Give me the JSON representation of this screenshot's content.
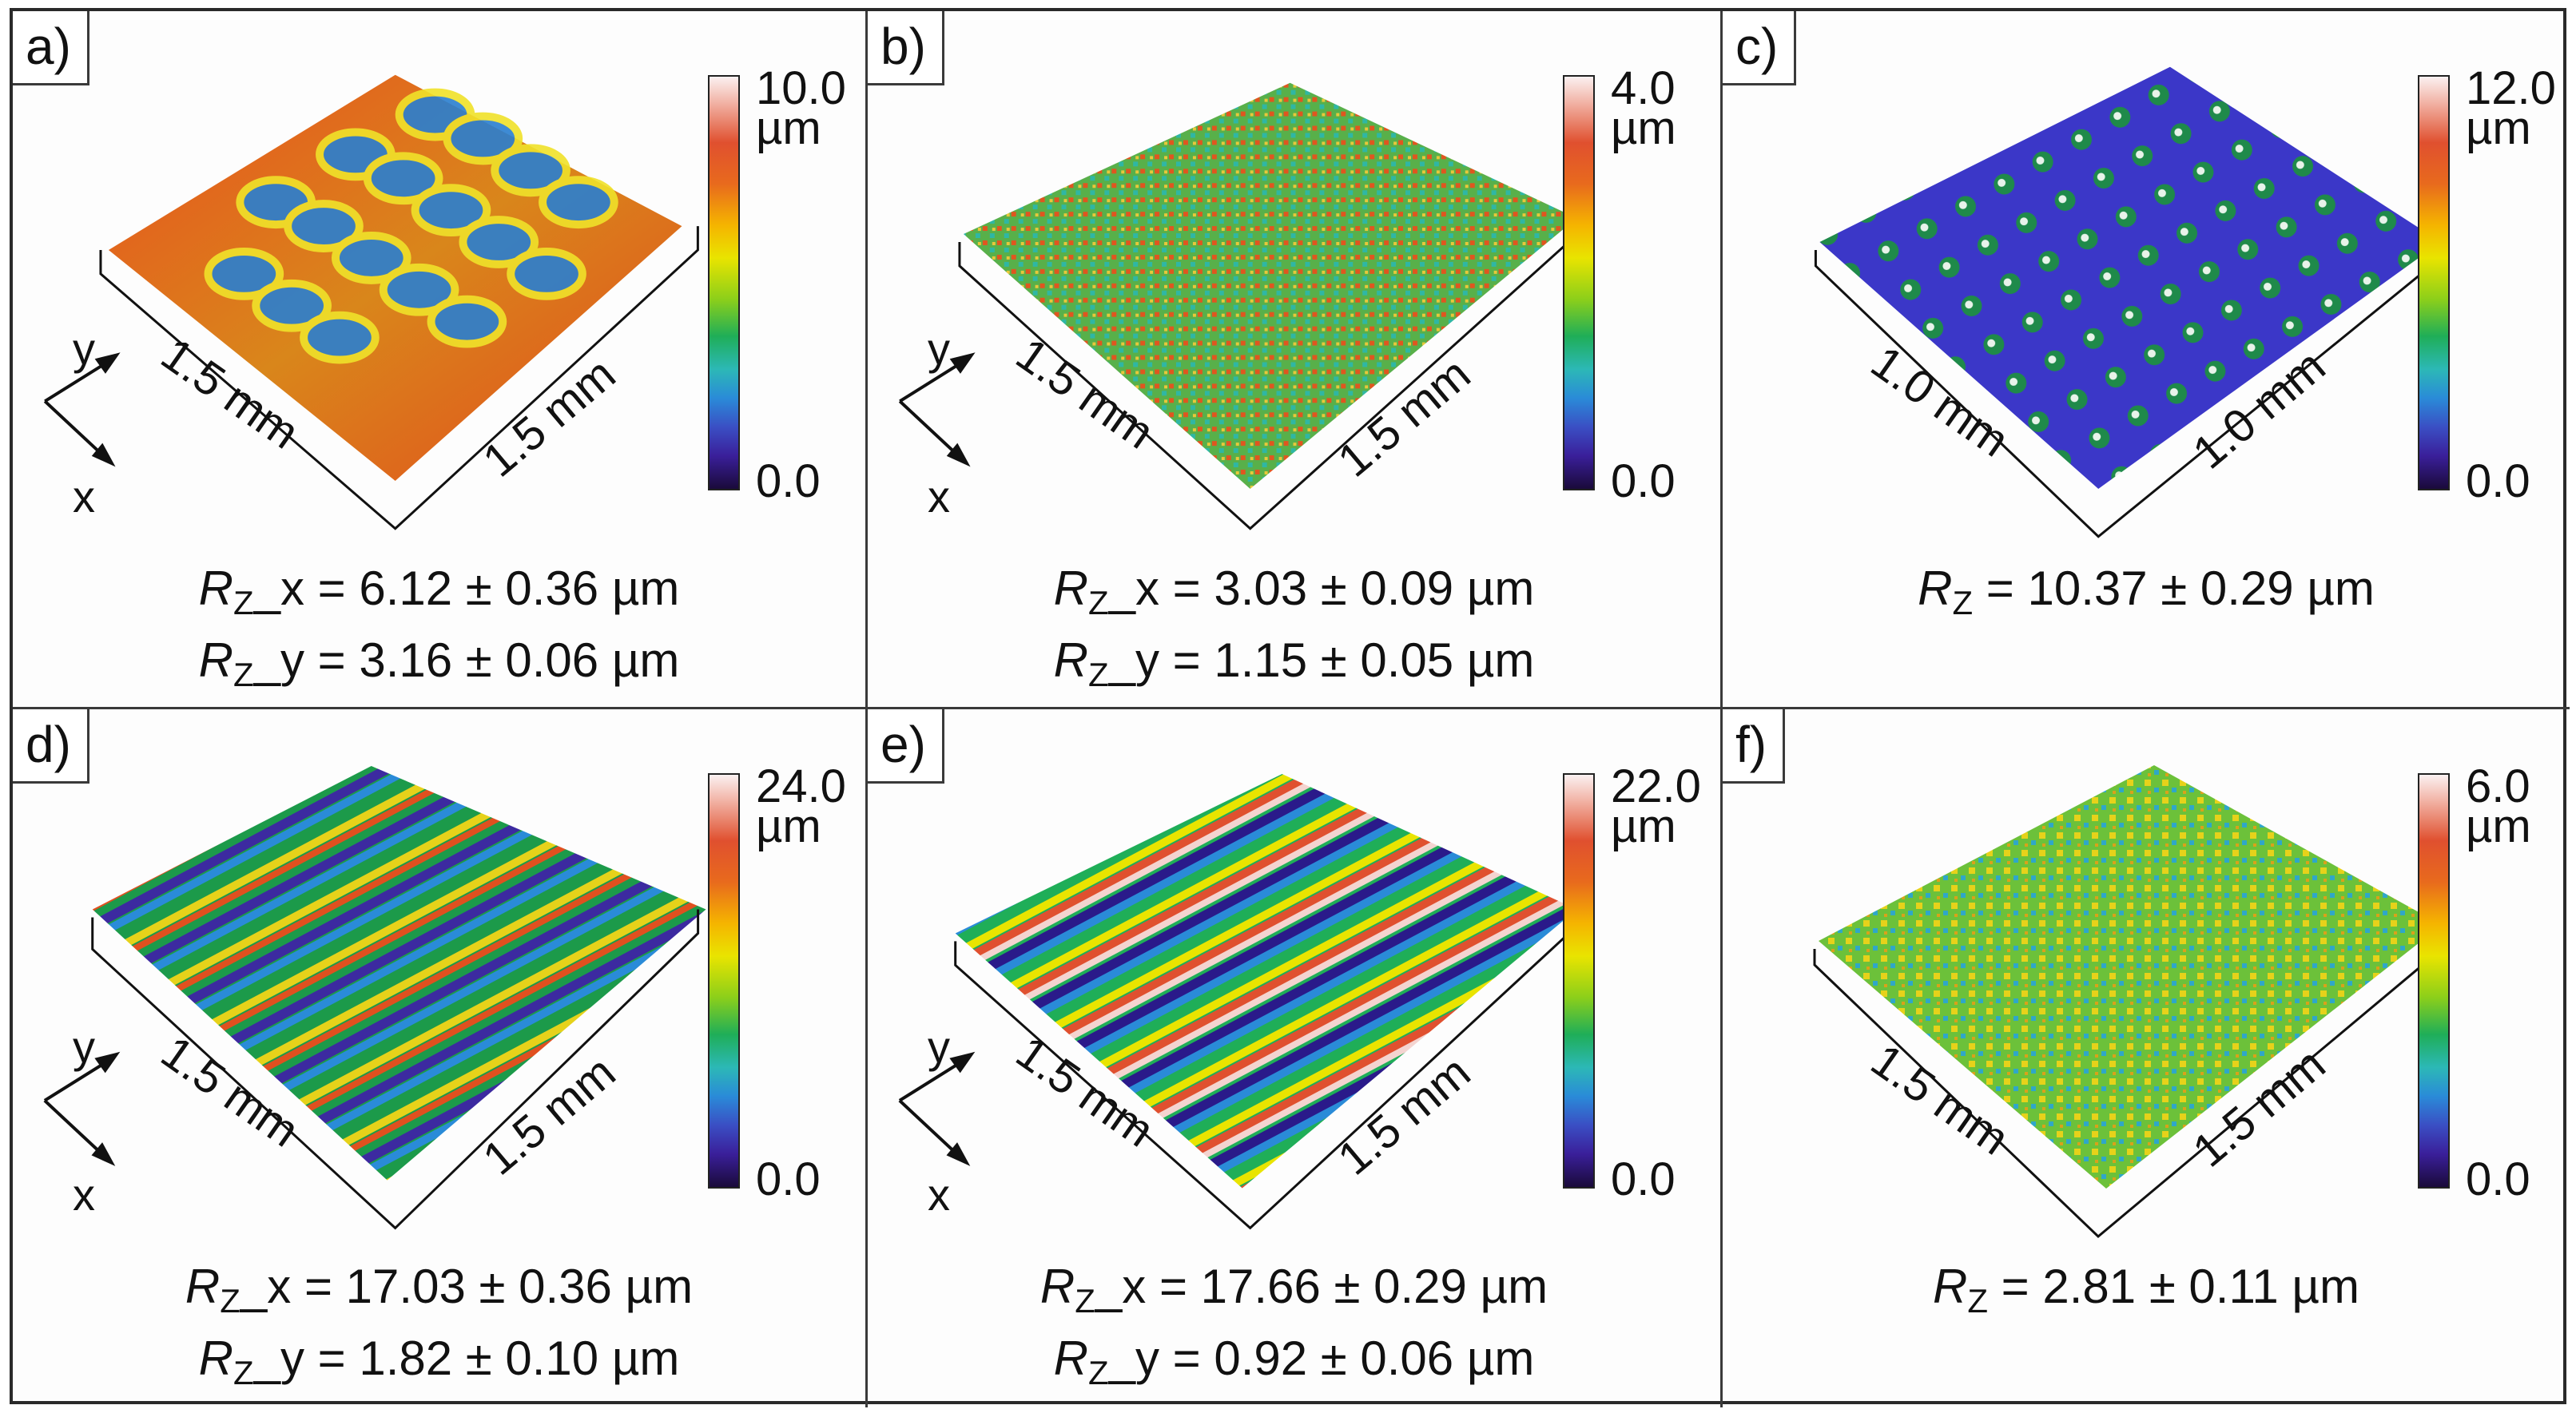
{
  "panels": [
    {
      "label": "a)",
      "colorbar": {
        "max": "10.0",
        "unit": "µm",
        "min": "0.0"
      },
      "dims": {
        "left": "1.5 mm",
        "right": "1.5 mm"
      },
      "axes": {
        "y": "y",
        "x": "x"
      },
      "measurements": [
        {
          "sym": "R",
          "sub": "Z",
          "suffix": "_x",
          "value": " = 6.12 ± 0.36 µm"
        },
        {
          "sym": "R",
          "sub": "Z",
          "suffix": "_y",
          "value": " = 3.16 ± 0.06 µm"
        }
      ]
    },
    {
      "label": "b)",
      "colorbar": {
        "max": "4.0",
        "unit": "µm",
        "min": "0.0"
      },
      "dims": {
        "left": "1.5 mm",
        "right": "1.5 mm"
      },
      "axes": {
        "y": "y",
        "x": "x"
      },
      "measurements": [
        {
          "sym": "R",
          "sub": "Z",
          "suffix": "_x",
          "value": " = 3.03 ± 0.09 µm"
        },
        {
          "sym": "R",
          "sub": "Z",
          "suffix": "_y",
          "value": " = 1.15 ± 0.05 µm"
        }
      ]
    },
    {
      "label": "c)",
      "colorbar": {
        "max": "12.0",
        "unit": "µm",
        "min": "0.0"
      },
      "dims": {
        "left": "1.0 mm",
        "right": "1.0 mm"
      },
      "measurements": [
        {
          "sym": "R",
          "sub": "Z",
          "suffix": "",
          "value": " = 10.37 ± 0.29 µm"
        }
      ]
    },
    {
      "label": "d)",
      "colorbar": {
        "max": "24.0",
        "unit": "µm",
        "min": "0.0"
      },
      "dims": {
        "left": "1.5 mm",
        "right": "1.5 mm"
      },
      "axes": {
        "y": "y",
        "x": "x"
      },
      "measurements": [
        {
          "sym": "R",
          "sub": "Z",
          "suffix": "_x",
          "value": " = 17.03 ± 0.36 µm"
        },
        {
          "sym": "R",
          "sub": "Z",
          "suffix": "_y",
          "value": " = 1.82 ± 0.10 µm"
        }
      ]
    },
    {
      "label": "e)",
      "colorbar": {
        "max": "22.0",
        "unit": "µm",
        "min": "0.0"
      },
      "dims": {
        "left": "1.5 mm",
        "right": "1.5 mm"
      },
      "axes": {
        "y": "y",
        "x": "x"
      },
      "measurements": [
        {
          "sym": "R",
          "sub": "Z",
          "suffix": "_x",
          "value": " = 17.66 ± 0.29 µm"
        },
        {
          "sym": "R",
          "sub": "Z",
          "suffix": "_y",
          "value": " = 0.92 ± 0.06 µm"
        }
      ]
    },
    {
      "label": "f)",
      "colorbar": {
        "max": "6.0",
        "unit": "µm",
        "min": "0.0"
      },
      "dims": {
        "left": "1.5 mm",
        "right": "1.5 mm"
      },
      "measurements": [
        {
          "sym": "R",
          "sub": "Z",
          "suffix": "",
          "value": " = 2.81 ± 0.11 µm"
        }
      ]
    }
  ]
}
